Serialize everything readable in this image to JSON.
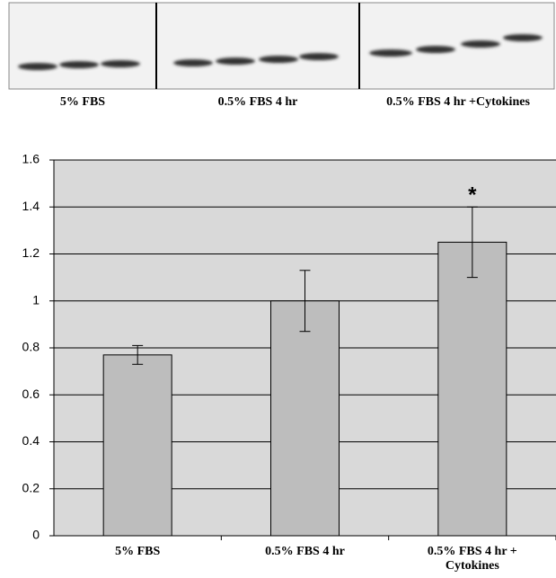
{
  "blot_labels": [
    "5% FBS",
    "0.5% FBS 4 hr",
    "0.5% FBS 4 hr +Cytokines"
  ],
  "chart_data": {
    "type": "bar",
    "categories": [
      "5% FBS",
      "0.5% FBS 4 hr",
      "0.5% FBS 4 hr + Cytokines"
    ],
    "values": [
      0.77,
      1.0,
      1.25
    ],
    "errors": [
      0.04,
      0.13,
      0.15
    ],
    "color": "#bdbdbd",
    "ylim": [
      0,
      1.6
    ],
    "yticks": [
      0,
      0.2,
      0.4,
      0.6,
      0.8,
      1,
      1.2,
      1.4,
      1.6
    ],
    "grid": true,
    "annotation": "*"
  }
}
